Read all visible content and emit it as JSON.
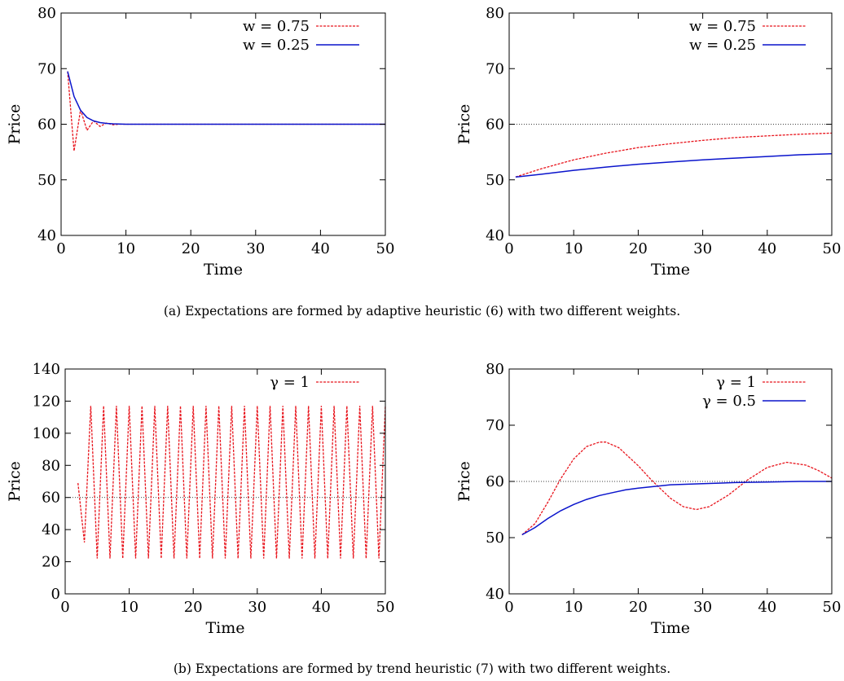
{
  "chart_data": [
    {
      "type": "line",
      "xlabel": "Time",
      "ylabel": "Price",
      "xlim": [
        0,
        50
      ],
      "ylim": [
        40,
        80
      ],
      "xticks": [
        0,
        10,
        20,
        30,
        40,
        50
      ],
      "yticks": [
        40,
        50,
        60,
        70,
        80
      ],
      "grid": false,
      "legend_position": "top-right",
      "reference_line": null,
      "series": [
        {
          "name": "w = 0.75",
          "color": "#e8141c",
          "style": "dashed",
          "x": [
            1,
            2,
            3,
            4,
            5,
            6,
            7,
            8,
            9,
            10,
            12,
            15,
            20,
            25,
            30,
            35,
            40,
            45,
            50
          ],
          "y": [
            69.5,
            55.2,
            62.6,
            58.9,
            60.6,
            59.6,
            60.2,
            59.9,
            60.0,
            60.0,
            60.0,
            60.0,
            60.0,
            60.0,
            60.0,
            60.0,
            60.0,
            60.0,
            60.0
          ]
        },
        {
          "name": "w = 0.25",
          "color": "#0a14cc",
          "style": "solid",
          "x": [
            1,
            2,
            3,
            4,
            5,
            6,
            7,
            8,
            9,
            10,
            12,
            15,
            20,
            25,
            30,
            35,
            40,
            45,
            50
          ],
          "y": [
            69.5,
            65.0,
            62.5,
            61.2,
            60.6,
            60.3,
            60.15,
            60.07,
            60.03,
            60.0,
            60.0,
            60.0,
            60.0,
            60.0,
            60.0,
            60.0,
            60.0,
            60.0,
            60.0
          ]
        }
      ]
    },
    {
      "type": "line",
      "xlabel": "Time",
      "ylabel": "Price",
      "xlim": [
        0,
        50
      ],
      "ylim": [
        40,
        80
      ],
      "xticks": [
        0,
        10,
        20,
        30,
        40,
        50
      ],
      "yticks": [
        40,
        50,
        60,
        70,
        80
      ],
      "grid": false,
      "legend_position": "top-right",
      "reference_line": 60,
      "series": [
        {
          "name": "w = 0.75",
          "color": "#e8141c",
          "style": "dashed",
          "x": [
            1,
            5,
            10,
            15,
            20,
            25,
            30,
            35,
            40,
            45,
            50
          ],
          "y": [
            50.5,
            52.0,
            53.6,
            54.8,
            55.8,
            56.5,
            57.1,
            57.6,
            57.9,
            58.2,
            58.4
          ]
        },
        {
          "name": "w = 0.25",
          "color": "#0a14cc",
          "style": "solid",
          "x": [
            1,
            5,
            10,
            15,
            20,
            25,
            30,
            35,
            40,
            45,
            50
          ],
          "y": [
            50.5,
            51.0,
            51.7,
            52.3,
            52.8,
            53.2,
            53.6,
            53.9,
            54.2,
            54.5,
            54.7
          ]
        }
      ]
    },
    {
      "type": "line",
      "xlabel": "Time",
      "ylabel": "Price",
      "xlim": [
        0,
        50
      ],
      "ylim": [
        0,
        140
      ],
      "xticks": [
        0,
        10,
        20,
        30,
        40,
        50
      ],
      "yticks": [
        0,
        20,
        40,
        60,
        80,
        100,
        120,
        140
      ],
      "grid": false,
      "legend_position": "top-right",
      "reference_line": 60,
      "series": [
        {
          "name": "γ = 1",
          "color": "#e8141c",
          "style": "dashed",
          "x": [
            2,
            3,
            4,
            5,
            6,
            7,
            8,
            9,
            10,
            11,
            12,
            13,
            14,
            15,
            16,
            17,
            18,
            19,
            20,
            21,
            22,
            23,
            24,
            25,
            26,
            27,
            28,
            29,
            30,
            31,
            32,
            33,
            34,
            35,
            36,
            37,
            38,
            39,
            40,
            41,
            42,
            43,
            44,
            45,
            46,
            47,
            48,
            49,
            50
          ],
          "y": [
            69,
            32,
            117,
            22,
            117,
            22,
            117,
            22,
            117,
            22,
            117,
            22,
            117,
            22,
            117,
            22,
            117,
            22,
            117,
            22,
            117,
            22,
            117,
            22,
            117,
            22,
            117,
            22,
            117,
            22,
            117,
            22,
            117,
            22,
            117,
            22,
            117,
            22,
            117,
            22,
            117,
            22,
            117,
            22,
            117,
            22,
            117,
            22,
            117
          ]
        }
      ]
    },
    {
      "type": "line",
      "xlabel": "Time",
      "ylabel": "Price",
      "xlim": [
        0,
        50
      ],
      "ylim": [
        40,
        80
      ],
      "xticks": [
        0,
        10,
        20,
        30,
        40,
        50
      ],
      "yticks": [
        40,
        50,
        60,
        70,
        80
      ],
      "grid": false,
      "legend_position": "top-right",
      "reference_line": 60,
      "series": [
        {
          "name": "γ = 1",
          "color": "#e8141c",
          "style": "dashed",
          "x": [
            2,
            4,
            6,
            8,
            10,
            12,
            14,
            15,
            17,
            20,
            22,
            25,
            27,
            29,
            31,
            34,
            37,
            40,
            43,
            46,
            48,
            50
          ],
          "y": [
            50.5,
            52.5,
            56.3,
            60.5,
            64.0,
            66.2,
            67.0,
            67.0,
            66.0,
            62.8,
            60.3,
            57.0,
            55.5,
            55.0,
            55.5,
            57.6,
            60.3,
            62.5,
            63.4,
            62.9,
            61.9,
            60.6
          ]
        },
        {
          "name": "γ = 0.5",
          "color": "#0a14cc",
          "style": "solid",
          "x": [
            2,
            4,
            6,
            8,
            10,
            12,
            14,
            16,
            18,
            20,
            25,
            30,
            35,
            40,
            45,
            50
          ],
          "y": [
            50.5,
            51.8,
            53.4,
            54.8,
            55.9,
            56.8,
            57.5,
            58.0,
            58.5,
            58.8,
            59.4,
            59.6,
            59.8,
            59.9,
            60.0,
            60.0
          ]
        }
      ]
    }
  ],
  "captions": [
    "(a) Expectations are formed by adaptive heuristic (6) with two different weights.",
    "(b) Expectations are formed by trend heuristic (7) with two different weights."
  ]
}
